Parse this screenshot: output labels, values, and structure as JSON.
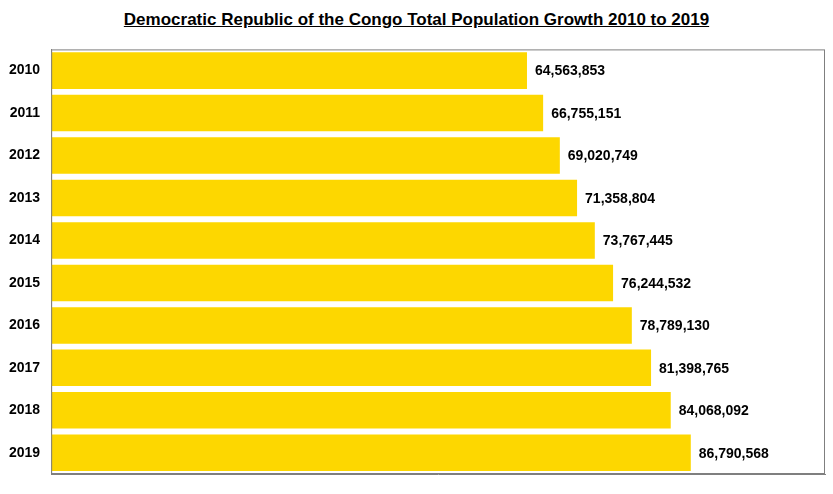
{
  "chart_data": {
    "type": "bar",
    "orientation": "horizontal",
    "title": "Democratic Republic of the Congo Total Population Growth 2010 to 2019",
    "categories": [
      "2010",
      "2011",
      "2012",
      "2013",
      "2014",
      "2015",
      "2016",
      "2017",
      "2018",
      "2019"
    ],
    "values": [
      64563853,
      66755151,
      69020749,
      71358804,
      73767445,
      76244532,
      78789130,
      81398765,
      84068092,
      86790568
    ],
    "value_labels": [
      "64,563,853",
      "66,755,151",
      "69,020,749",
      "71,358,804",
      "73,767,445",
      "76,244,532",
      "78,789,130",
      "81,398,765",
      "84,068,092",
      "86,790,568"
    ],
    "color": "#fdd700",
    "xlim": [
      0,
      105000000
    ],
    "grid": false,
    "data_labels": true,
    "tick_labels": "y"
  }
}
